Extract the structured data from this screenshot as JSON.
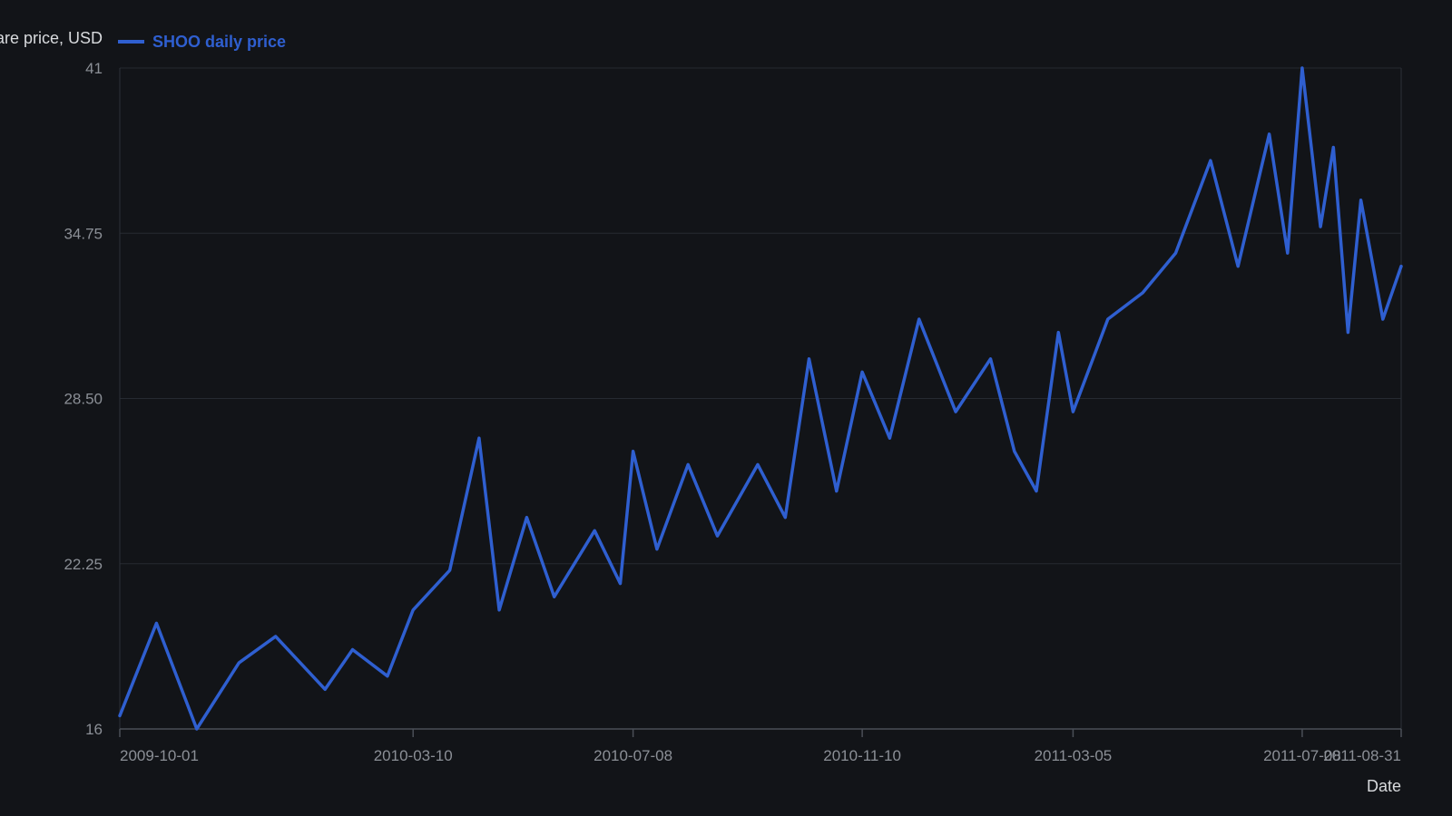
{
  "chart_data": {
    "type": "line",
    "title": "",
    "xlabel": "Date",
    "ylabel": "Share price, USD",
    "x_axis_type": "date",
    "xlim": [
      "2009-10-01",
      "2011-08-31"
    ],
    "ylim": [
      16,
      41
    ],
    "y_ticks": [
      16,
      22.25,
      28.5,
      34.75,
      41
    ],
    "y_tick_labels": [
      "16",
      "22.25",
      "28.50",
      "34.75",
      "41"
    ],
    "x_ticks": [
      "2009-10-01",
      "2010-03-10",
      "2010-07-08",
      "2010-11-10",
      "2011-03-05",
      "2011-07-08",
      "2011-08-31"
    ],
    "x_tick_labels": [
      "2009-10-01",
      "2010-03-10",
      "2010-07-08",
      "2010-11-10",
      "2011-03-05",
      "2011-07-08",
      "2011-08-31"
    ],
    "grid": true,
    "legend": "top-left",
    "series": [
      {
        "name": "SHOO daily price",
        "color": "#2f5fd0",
        "x": [
          "2009-10-01",
          "2009-10-21",
          "2009-11-12",
          "2009-12-05",
          "2009-12-25",
          "2010-01-21",
          "2010-02-05",
          "2010-02-24",
          "2010-03-10",
          "2010-03-30",
          "2010-04-15",
          "2010-04-26",
          "2010-05-11",
          "2010-05-26",
          "2010-06-17",
          "2010-07-01",
          "2010-07-08",
          "2010-07-21",
          "2010-08-07",
          "2010-08-23",
          "2010-09-14",
          "2010-09-29",
          "2010-10-12",
          "2010-10-27",
          "2010-11-10",
          "2010-11-25",
          "2010-12-11",
          "2010-12-31",
          "2011-01-19",
          "2011-02-01",
          "2011-02-13",
          "2011-02-25",
          "2011-03-05",
          "2011-03-24",
          "2011-04-12",
          "2011-04-30",
          "2011-05-19",
          "2011-06-03",
          "2011-06-20",
          "2011-06-30",
          "2011-07-08",
          "2011-07-18",
          "2011-07-25",
          "2011-08-02",
          "2011-08-09",
          "2011-08-21",
          "2011-08-31"
        ],
        "values": [
          16.5,
          20.0,
          16.0,
          18.5,
          19.5,
          17.5,
          19.0,
          18.0,
          20.5,
          22.0,
          27.0,
          20.5,
          24.0,
          21.0,
          23.5,
          21.5,
          26.5,
          22.8,
          26.0,
          23.3,
          26.0,
          24.0,
          30.0,
          25.0,
          29.5,
          27.0,
          31.5,
          28.0,
          30.0,
          26.5,
          25.0,
          31.0,
          28.0,
          31.5,
          32.5,
          34.0,
          37.5,
          33.5,
          38.5,
          34.0,
          41.0,
          35.0,
          38.0,
          31.0,
          36.0,
          31.5,
          33.5
        ]
      }
    ]
  }
}
